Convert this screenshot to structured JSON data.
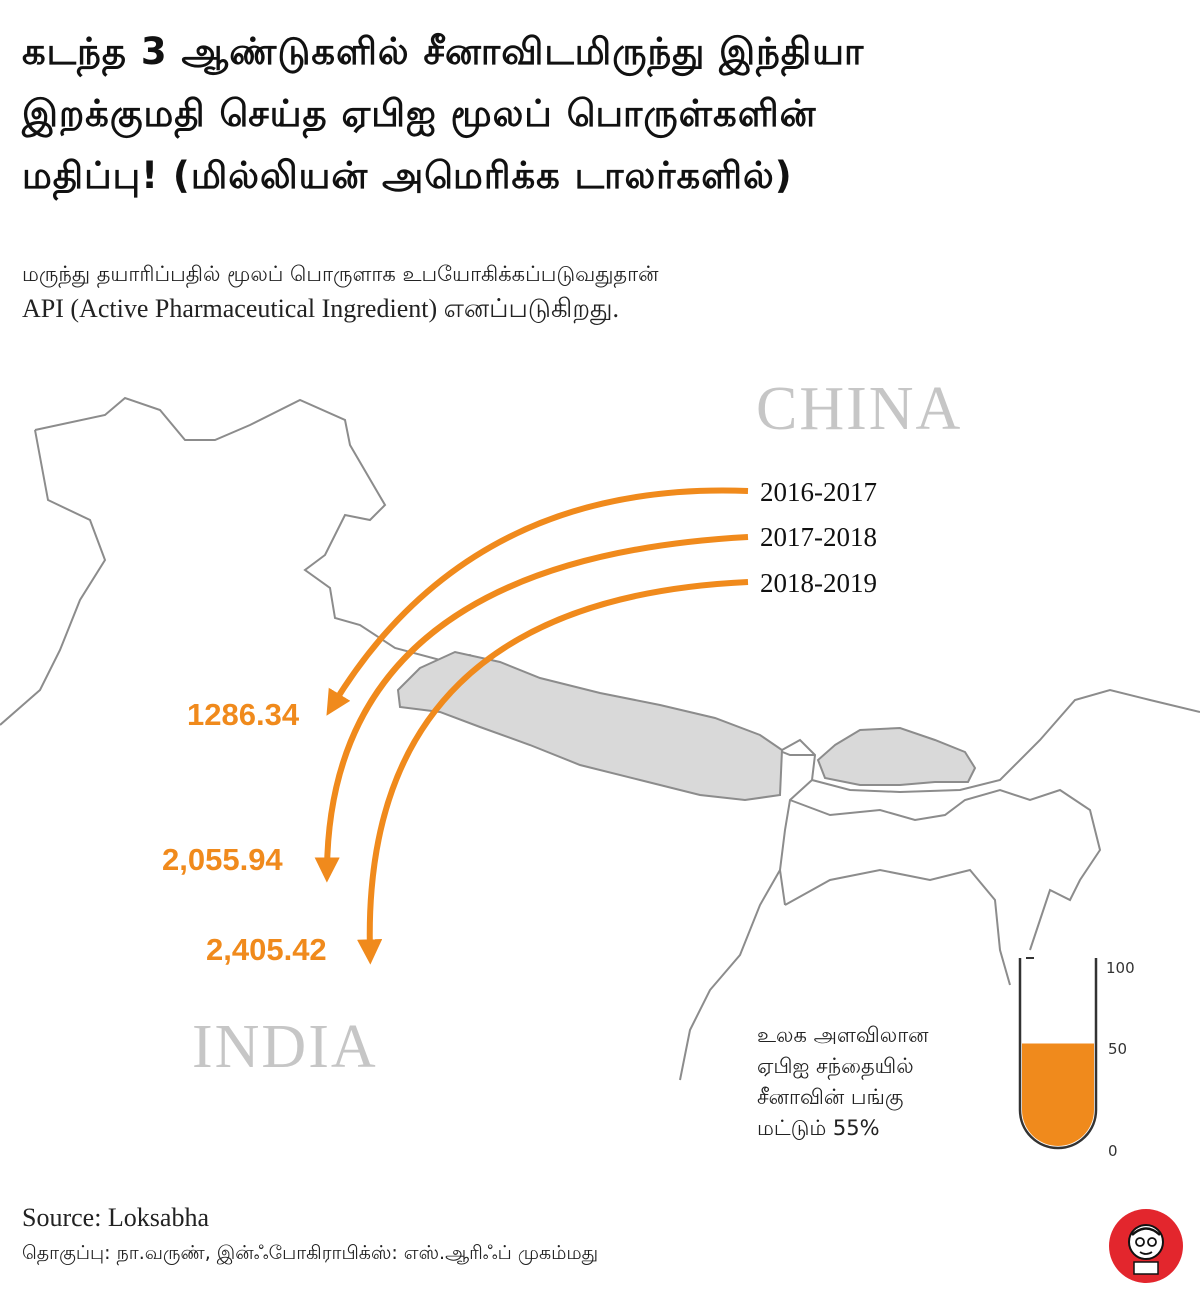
{
  "title": {
    "line1": "கடந்த 3 ஆண்டுகளில் சீனாவிடமிருந்து இந்தியா",
    "line2": "இறக்குமதி செய்த ஏபிஐ மூலப் பொருள்களின்",
    "line3": "மதிப்பு! (மில்லியன் அமெரிக்க டாலர்களில்)"
  },
  "subtitle": {
    "line1": "மருந்து தயாரிப்பதில் மூலப் பொருளாக உபயோகிக்கப்படுவதுதான்",
    "line2": "API (Active Pharmaceutical Ingredient) எனப்படுகிறது."
  },
  "map": {
    "china_label": "CHINA",
    "india_label": "INDIA"
  },
  "chart_data": [
    {
      "type": "bar",
      "title": "கடந்த 3 ஆண்டுகளில் சீனாவிடமிருந்து இந்தியா இறக்குமதி செய்த ஏபிஐ மூலப் பொருள்களின் மதிப்பு! (மில்லியன் அமெரிக்க டாலர்களில்)",
      "categories": [
        "2016-2017",
        "2017-2018",
        "2018-2019"
      ],
      "values": [
        1286.34,
        2055.94,
        2405.42
      ],
      "value_labels": [
        "1286.34",
        "2,055.94",
        "2,405.42"
      ],
      "ylabel": "Million US Dollars"
    },
    {
      "type": "bar",
      "title": "உலக அளவிலான ஏபிஐ சந்தையில் சீனாவின் பங்கு மட்டும் 55%",
      "categories": [
        "China share"
      ],
      "values": [
        55
      ],
      "ylim": [
        0,
        100
      ],
      "ticks": [
        "100",
        "50",
        "0"
      ],
      "caption": [
        "உலக அளவிலான",
        "ஏபிஐ சந்தையில்",
        "சீனாவின் பங்கு",
        "மட்டும் 55%"
      ]
    }
  ],
  "footer": {
    "source": "Source: Loksabha",
    "credits": "தொகுப்பு: நா.வருண், இன்ஃபோகிராபிக்ஸ்: எஸ்.ஆரிஃப் முகம்மது"
  },
  "colors": {
    "accent": "#f08a1c",
    "nepal_fill": "#d9d9d9",
    "border": "#8c8c8c",
    "country_label": "#c6c6c6",
    "logo_red": "#e3262d"
  }
}
